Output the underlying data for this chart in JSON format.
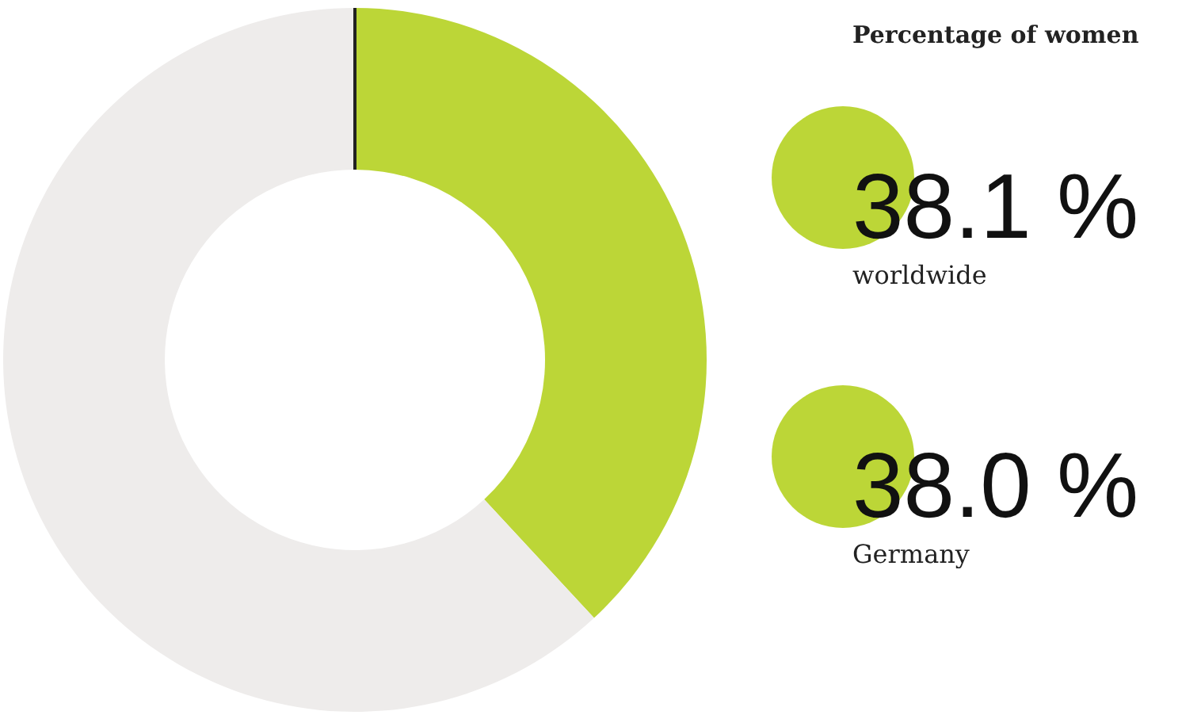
{
  "chart_data": {
    "type": "donut",
    "title": "Percentage of women",
    "categories": [
      null,
      null
    ],
    "values": [
      38.1,
      61.9
    ],
    "colors": [
      "#bcd637",
      "#eeeceb"
    ],
    "annotations": [
      "38.1 %",
      "worldwide",
      "38.0 %",
      "Germany"
    ]
  }
}
